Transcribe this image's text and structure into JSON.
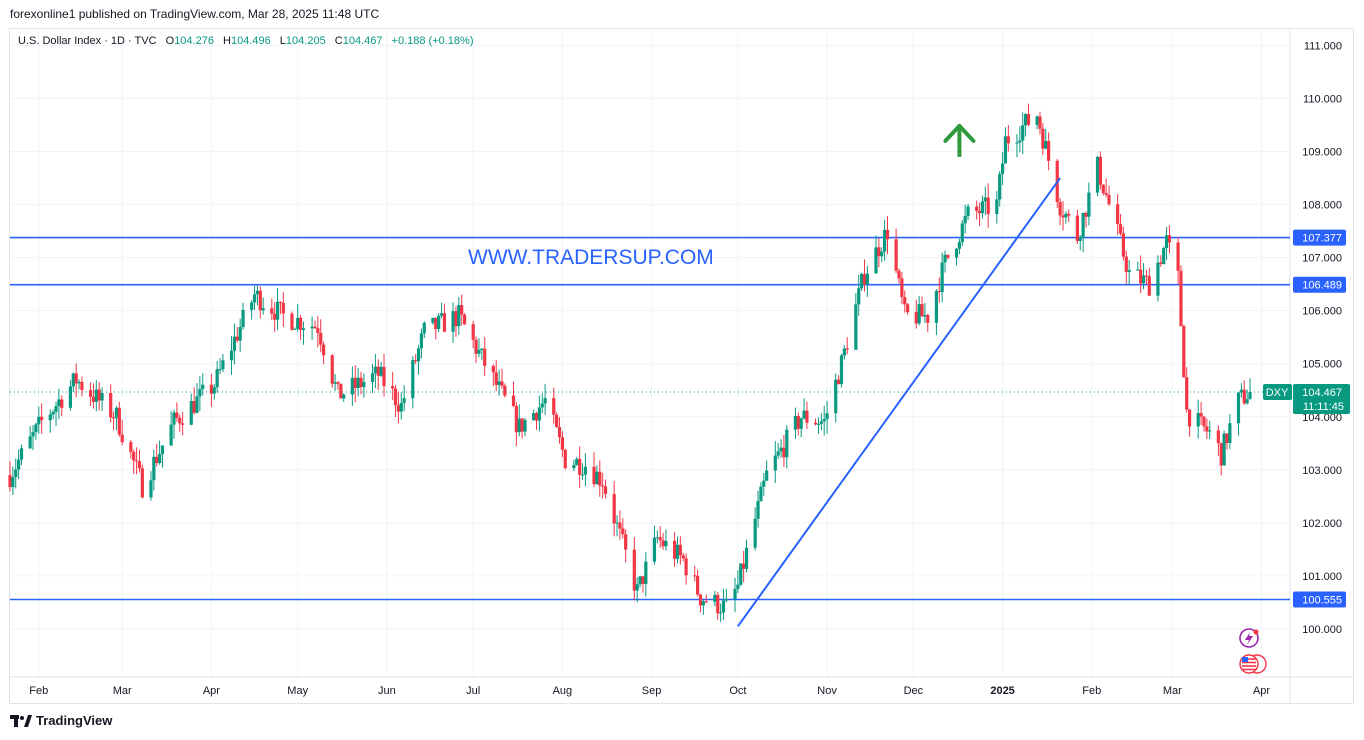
{
  "header": {
    "text": "forexonline1 published on TradingView.com, Mar 28, 2025 11:48 UTC"
  },
  "legend": {
    "symbol": "U.S. Dollar Index · 1D · TVC",
    "open_label": "O",
    "open": "104.276",
    "high_label": "H",
    "high": "104.496",
    "low_label": "L",
    "low": "104.205",
    "close_label": "C",
    "close": "104.467",
    "change": "+0.188 (+0.18%)"
  },
  "watermark": "WWW.TRADERSUP.COM",
  "footer": {
    "brand": "TradingView"
  },
  "colors": {
    "up": "#089981",
    "down": "#f23645",
    "level": "#2962ff",
    "trend": "#2962ff",
    "arrow": "#2e9a3c",
    "price_tag": "#089981"
  },
  "chart_data": {
    "type": "candlestick",
    "symbol": "DXY",
    "timeframe": "1D",
    "ylim": [
      99.0,
      111.3
    ],
    "y_ticks": [
      "100.000",
      "101.000",
      "102.000",
      "103.000",
      "104.000",
      "105.000",
      "106.000",
      "107.000",
      "108.000",
      "109.000",
      "110.000",
      "111.000"
    ],
    "x_ticks": [
      "Feb",
      "Mar",
      "Apr",
      "May",
      "Jun",
      "Jul",
      "Aug",
      "Sep",
      "Oct",
      "Nov",
      "Dec",
      "2025",
      "Feb",
      "Mar",
      "Apr"
    ],
    "horizontal_levels": [
      "107.377",
      "106.489",
      "100.555"
    ],
    "last_price": {
      "symbol": "DXY",
      "value": "104.467",
      "countdown": "11:11:45"
    },
    "trendline": {
      "from": [
        "2024-10-01",
        100.05
      ],
      "to": [
        "2025-01-21",
        108.5
      ]
    },
    "arrow": {
      "direction": "up",
      "date": "2024-12-17",
      "price": 109.2
    },
    "ohlc_waypoints": [
      [
        "2024-01-22",
        102.9
      ],
      [
        "2024-02-02",
        103.9
      ],
      [
        "2024-02-14",
        104.7
      ],
      [
        "2024-02-28",
        104.0
      ],
      [
        "2024-03-08",
        102.7
      ],
      [
        "2024-03-19",
        103.9
      ],
      [
        "2024-04-02",
        104.6
      ],
      [
        "2024-04-16",
        106.3
      ],
      [
        "2024-04-26",
        105.9
      ],
      [
        "2024-05-08",
        105.7
      ],
      [
        "2024-05-15",
        104.4
      ],
      [
        "2024-05-29",
        104.8
      ],
      [
        "2024-06-06",
        104.2
      ],
      [
        "2024-06-14",
        105.6
      ],
      [
        "2024-06-26",
        105.9
      ],
      [
        "2024-07-03",
        105.2
      ],
      [
        "2024-07-17",
        103.8
      ],
      [
        "2024-07-26",
        104.3
      ],
      [
        "2024-08-02",
        103.2
      ],
      [
        "2024-08-09",
        103.1
      ],
      [
        "2024-08-15",
        102.8
      ],
      [
        "2024-08-27",
        100.7
      ],
      [
        "2024-09-03",
        101.7
      ],
      [
        "2024-09-12",
        101.3
      ],
      [
        "2024-09-18",
        100.6
      ],
      [
        "2024-09-27",
        100.4
      ],
      [
        "2024-10-01",
        100.8
      ],
      [
        "2024-10-11",
        102.9
      ],
      [
        "2024-10-23",
        104.0
      ],
      [
        "2024-10-31",
        103.9
      ],
      [
        "2024-11-06",
        105.0
      ],
      [
        "2024-11-14",
        106.7
      ],
      [
        "2024-11-22",
        107.5
      ],
      [
        "2024-11-28",
        105.9
      ],
      [
        "2024-12-06",
        105.9
      ],
      [
        "2024-12-12",
        106.9
      ],
      [
        "2024-12-20",
        107.8
      ],
      [
        "2024-12-30",
        108.0
      ],
      [
        "2025-01-02",
        109.2
      ],
      [
        "2025-01-13",
        109.7
      ],
      [
        "2025-01-21",
        108.0
      ],
      [
        "2025-01-27",
        107.4
      ],
      [
        "2025-02-03",
        108.7
      ],
      [
        "2025-02-07",
        108.0
      ],
      [
        "2025-02-14",
        106.7
      ],
      [
        "2025-02-21",
        106.5
      ],
      [
        "2025-02-27",
        107.3
      ],
      [
        "2025-03-03",
        106.6
      ],
      [
        "2025-03-06",
        104.1
      ],
      [
        "2025-03-11",
        103.8
      ],
      [
        "2025-03-14",
        103.7
      ],
      [
        "2025-03-18",
        103.3
      ],
      [
        "2025-03-24",
        104.3
      ],
      [
        "2025-03-28",
        104.467
      ]
    ]
  }
}
